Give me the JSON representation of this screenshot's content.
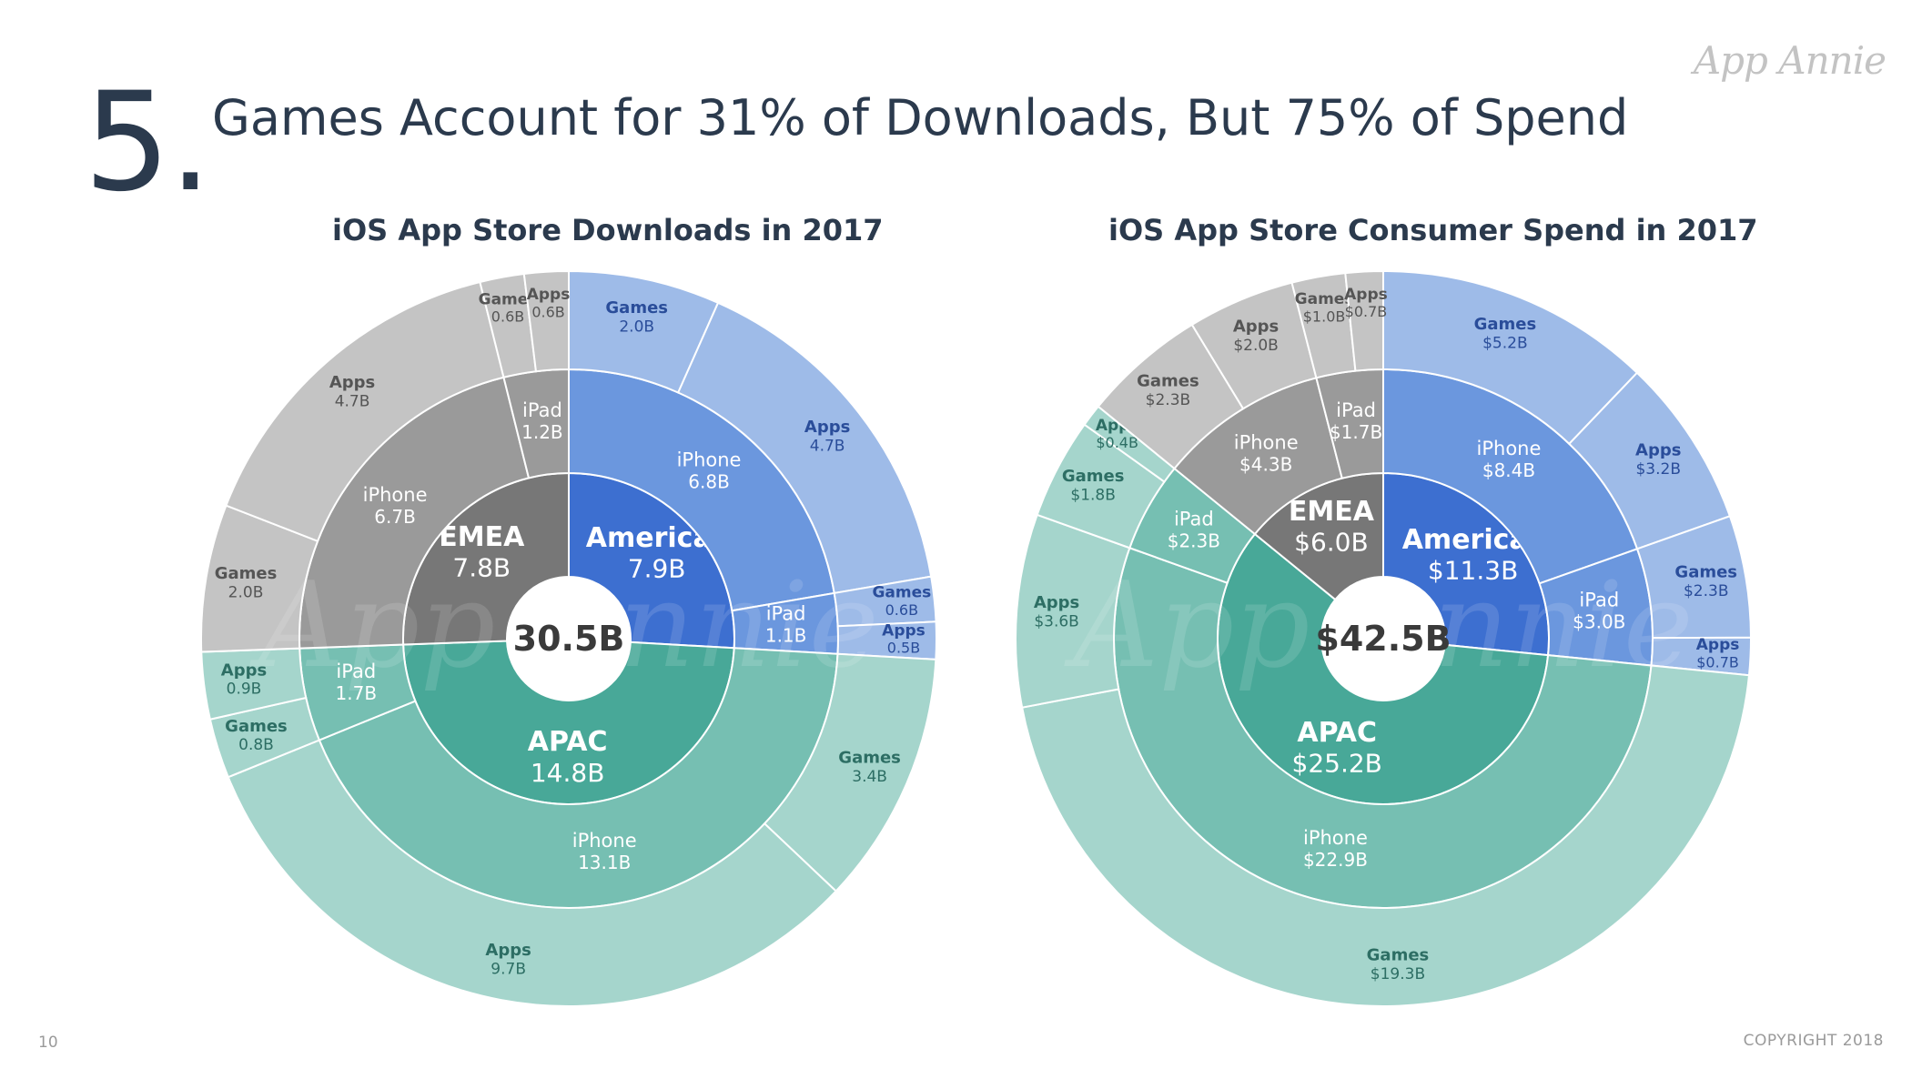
{
  "slide": {
    "number": "5.",
    "title": "Games Account for 31% of Downloads, But 75% of Spend",
    "brand": "App Annie",
    "page_number": "10",
    "copyright": "COPYRIGHT 2018"
  },
  "colors": {
    "americas": [
      "#3d6fd0",
      "#6b97de",
      "#9ebbe8"
    ],
    "apac": [
      "#48a898",
      "#76bfb2",
      "#a5d5cc"
    ],
    "emea": [
      "#777777",
      "#9a9a9a",
      "#c4c4c4"
    ],
    "center": "#ffffff"
  },
  "chart_data": [
    {
      "type": "sunburst",
      "title": "iOS App Store Downloads in 2017",
      "total_label": "30.5B",
      "total": 30.5,
      "regions": [
        {
          "name": "Americas",
          "label": "7.9B",
          "value": 7.9,
          "color_key": "americas",
          "devices": [
            {
              "name": "iPhone",
              "label": "6.8B",
              "value": 6.8,
              "categories": [
                {
                  "name": "Games",
                  "label": "2.0B",
                  "value": 2.0
                },
                {
                  "name": "Apps",
                  "label": "4.7B",
                  "value": 4.7
                }
              ]
            },
            {
              "name": "iPad",
              "label": "1.1B",
              "value": 1.1,
              "categories": [
                {
                  "name": "Games",
                  "label": "0.6B",
                  "value": 0.6
                },
                {
                  "name": "Apps",
                  "label": "0.5B",
                  "value": 0.5
                }
              ]
            }
          ]
        },
        {
          "name": "APAC",
          "label": "14.8B",
          "value": 14.8,
          "color_key": "apac",
          "devices": [
            {
              "name": "iPhone",
              "label": "13.1B",
              "value": 13.1,
              "categories": [
                {
                  "name": "Games",
                  "label": "3.4B",
                  "value": 3.4
                },
                {
                  "name": "Apps",
                  "label": "9.7B",
                  "value": 9.7
                }
              ]
            },
            {
              "name": "iPad",
              "label": "1.7B",
              "value": 1.7,
              "categories": [
                {
                  "name": "Games",
                  "label": "0.8B",
                  "value": 0.8
                },
                {
                  "name": "Apps",
                  "label": "0.9B",
                  "value": 0.9
                }
              ]
            }
          ]
        },
        {
          "name": "EMEA",
          "label": "7.8B",
          "value": 7.8,
          "color_key": "emea",
          "devices": [
            {
              "name": "iPhone",
              "label": "6.7B",
              "value": 6.7,
              "categories": [
                {
                  "name": "Games",
                  "label": "2.0B",
                  "value": 2.0
                },
                {
                  "name": "Apps",
                  "label": "4.7B",
                  "value": 4.7
                }
              ]
            },
            {
              "name": "iPad",
              "label": "1.2B",
              "value": 1.2,
              "categories": [
                {
                  "name": "Games",
                  "label": "0.6B",
                  "value": 0.6
                },
                {
                  "name": "Apps",
                  "label": "0.6B",
                  "value": 0.6
                }
              ]
            }
          ]
        }
      ]
    },
    {
      "type": "sunburst",
      "title": "iOS App Store Consumer Spend in 2017",
      "total_label": "$42.5B",
      "total": 42.5,
      "regions": [
        {
          "name": "Americas",
          "label": "$11.3B",
          "value": 11.3,
          "color_key": "americas",
          "devices": [
            {
              "name": "iPhone",
              "label": "$8.4B",
              "value": 8.4,
              "categories": [
                {
                  "name": "Games",
                  "label": "$5.2B",
                  "value": 5.2
                },
                {
                  "name": "Apps",
                  "label": "$3.2B",
                  "value": 3.2
                }
              ]
            },
            {
              "name": "iPad",
              "label": "$3.0B",
              "value": 3.0,
              "categories": [
                {
                  "name": "Games",
                  "label": "$2.3B",
                  "value": 2.3
                },
                {
                  "name": "Apps",
                  "label": "$0.7B",
                  "value": 0.7
                }
              ]
            }
          ]
        },
        {
          "name": "APAC",
          "label": "$25.2B",
          "value": 25.2,
          "color_key": "apac",
          "devices": [
            {
              "name": "iPhone",
              "label": "$22.9B",
              "value": 22.9,
              "categories": [
                {
                  "name": "Games",
                  "label": "$19.3B",
                  "value": 19.3
                },
                {
                  "name": "Apps",
                  "label": "$3.6B",
                  "value": 3.6
                }
              ]
            },
            {
              "name": "iPad",
              "label": "$2.3B",
              "value": 2.3,
              "categories": [
                {
                  "name": "Games",
                  "label": "$1.8B",
                  "value": 1.8
                },
                {
                  "name": "Apps",
                  "label": "$0.4B",
                  "value": 0.4
                }
              ]
            }
          ]
        },
        {
          "name": "EMEA",
          "label": "$6.0B",
          "value": 6.0,
          "color_key": "emea",
          "devices": [
            {
              "name": "iPhone",
              "label": "$4.3B",
              "value": 4.3,
              "categories": [
                {
                  "name": "Games",
                  "label": "$2.3B",
                  "value": 2.3
                },
                {
                  "name": "Apps",
                  "label": "$2.0B",
                  "value": 2.0
                }
              ]
            },
            {
              "name": "iPad",
              "label": "$1.7B",
              "value": 1.7,
              "categories": [
                {
                  "name": "Games",
                  "label": "$1.0B",
                  "value": 1.0
                },
                {
                  "name": "Apps",
                  "label": "$0.7B",
                  "value": 0.7
                }
              ]
            }
          ]
        }
      ]
    }
  ]
}
